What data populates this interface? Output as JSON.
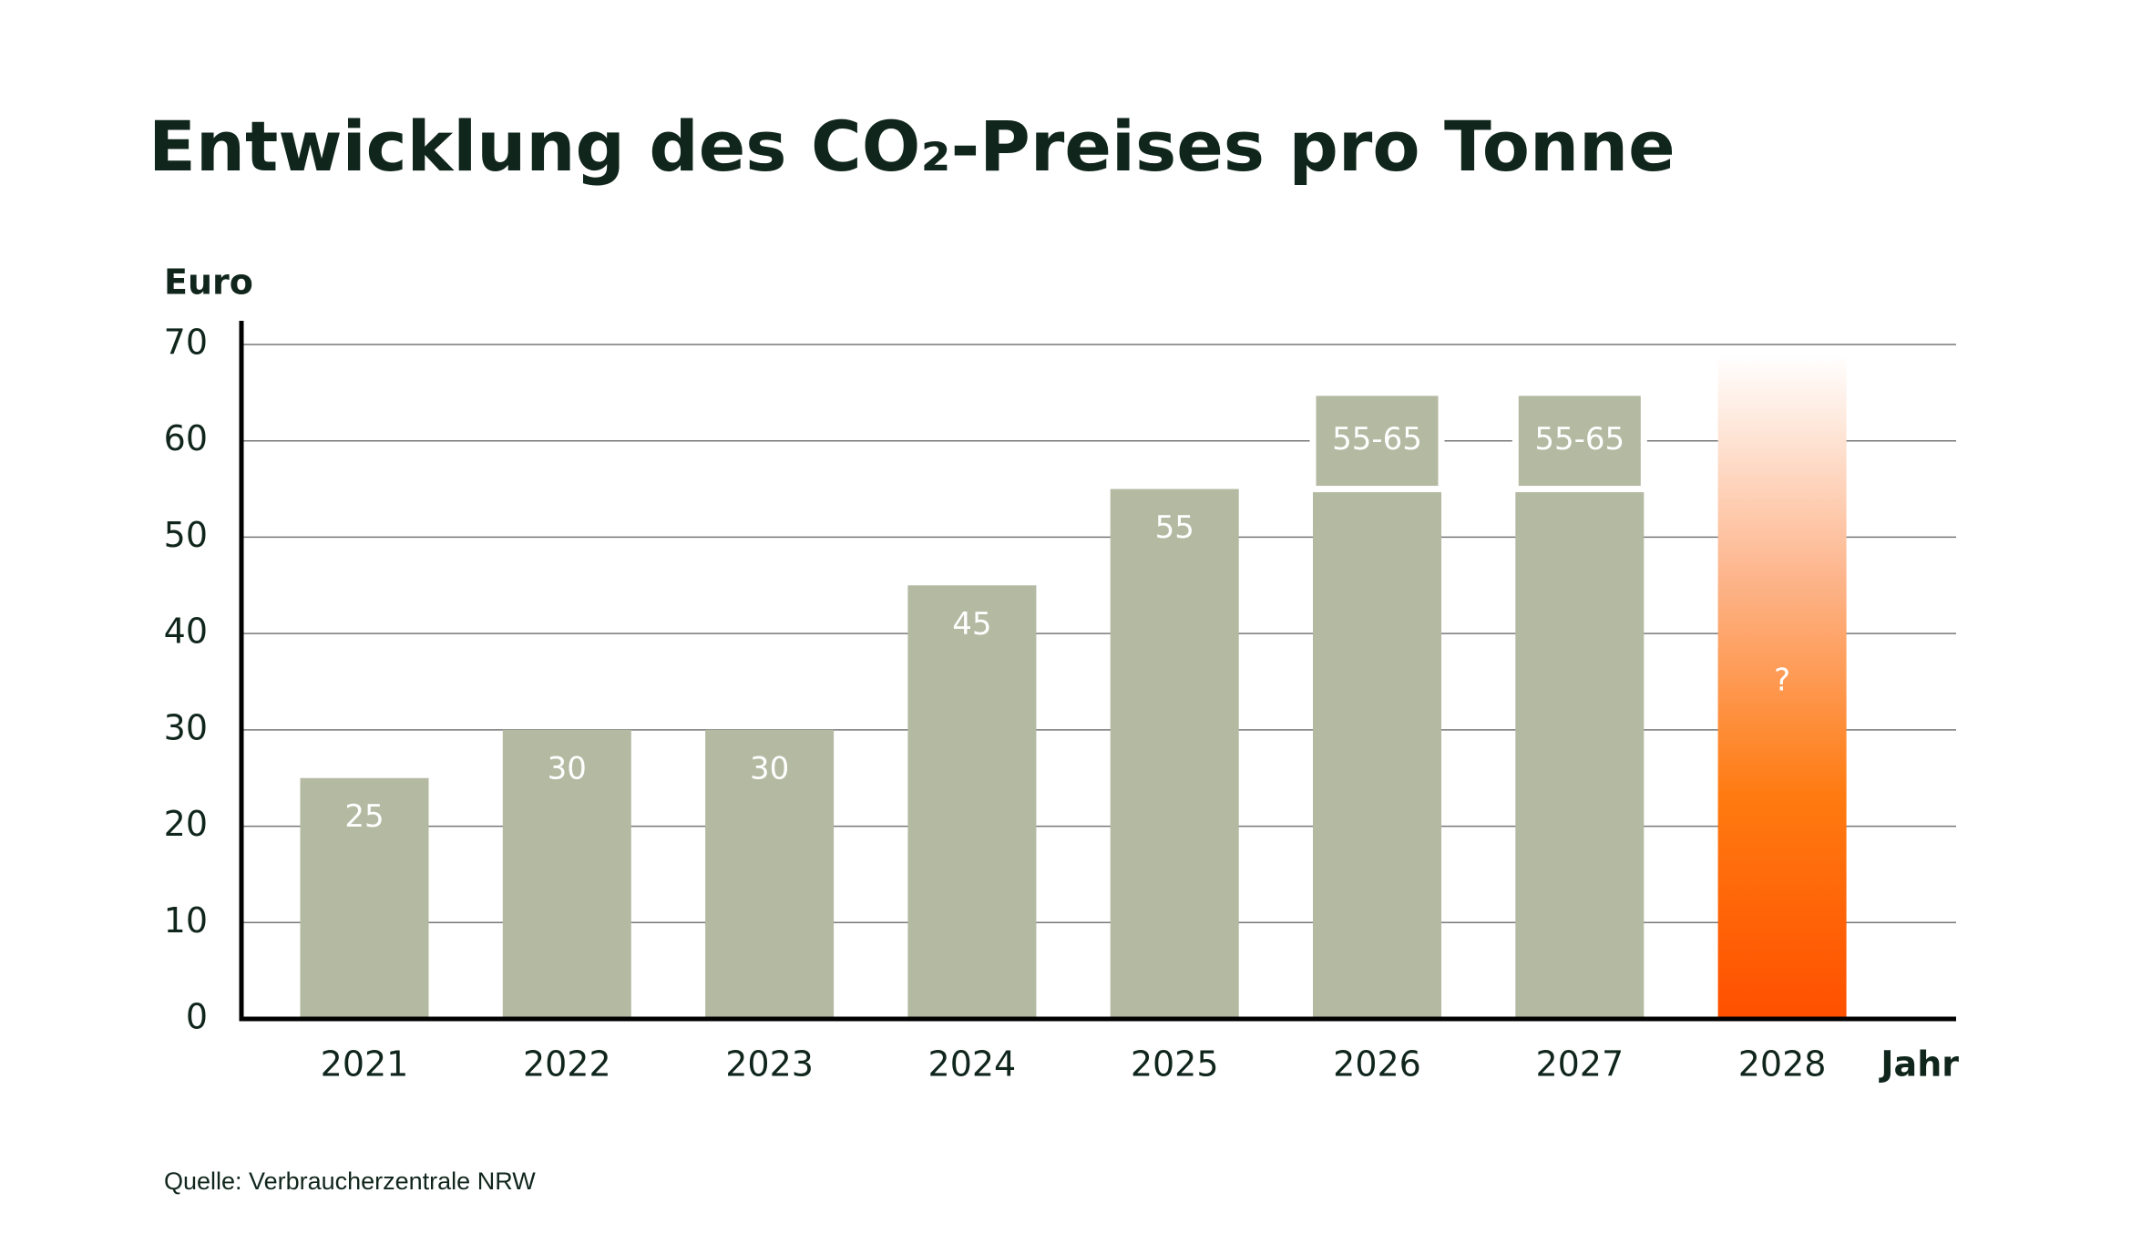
{
  "chart_data": {
    "type": "bar",
    "title": "Entwicklung des CO₂-Preises pro Tonne",
    "y_label": "Euro",
    "x_label": "Jahr",
    "source": "Quelle: Verbraucherzentrale NRW",
    "categories": [
      "2021",
      "2022",
      "2023",
      "2024",
      "2025",
      "2026",
      "2027",
      "2028"
    ],
    "values": [
      25,
      30,
      30,
      45,
      55,
      55,
      55,
      null
    ],
    "color": "#b4b9a2",
    "range_low": [
      null,
      null,
      null,
      null,
      null,
      55,
      55,
      null
    ],
    "range_high": [
      null,
      null,
      null,
      null,
      null,
      65,
      65,
      null
    ],
    "range_labels": [
      null,
      null,
      null,
      null,
      null,
      "55-65",
      "55-65",
      null
    ],
    "unknown_label": "?",
    "unknown_index": 7,
    "unknown_colors": [
      "#ff5000",
      "#ff7a10",
      "#fdb58c",
      "#ffffff"
    ],
    "ylim": [
      0,
      70
    ],
    "yticks": [
      0,
      10,
      20,
      30,
      40,
      50,
      60,
      70
    ],
    "grid": true
  }
}
